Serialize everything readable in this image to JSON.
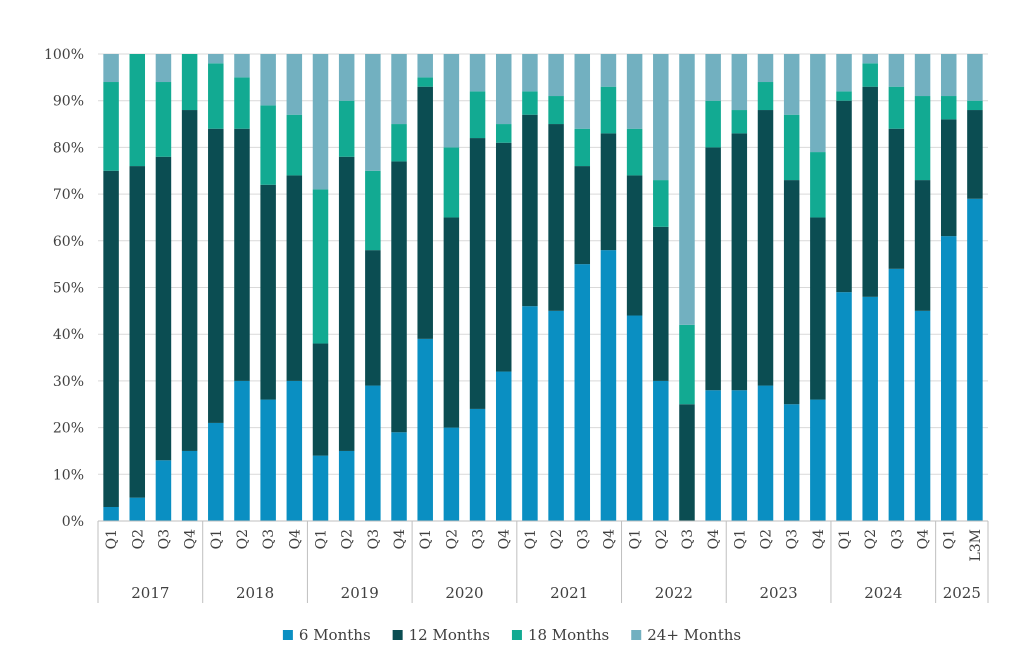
{
  "chart_data": {
    "type": "bar",
    "stacked": true,
    "percent": true,
    "title": "",
    "xlabel": "",
    "ylabel": "",
    "ylim": [
      0,
      100
    ],
    "y_ticks": [
      "0%",
      "10%",
      "20%",
      "30%",
      "40%",
      "50%",
      "60%",
      "70%",
      "80%",
      "90%",
      "100%"
    ],
    "grid": true,
    "legend_position": "bottom",
    "categories": [
      "Q1",
      "Q2",
      "Q3",
      "Q4",
      "Q1",
      "Q2",
      "Q3",
      "Q4",
      "Q1",
      "Q2",
      "Q3",
      "Q4",
      "Q1",
      "Q2",
      "Q3",
      "Q4",
      "Q1",
      "Q2",
      "Q3",
      "Q4",
      "Q1",
      "Q2",
      "Q3",
      "Q4",
      "Q1",
      "Q2",
      "Q3",
      "Q4",
      "Q1",
      "Q2",
      "Q3",
      "Q4",
      "Q1",
      "L3M"
    ],
    "groups": [
      {
        "label": "2017",
        "count": 4
      },
      {
        "label": "2018",
        "count": 4
      },
      {
        "label": "2019",
        "count": 4
      },
      {
        "label": "2020",
        "count": 4
      },
      {
        "label": "2021",
        "count": 4
      },
      {
        "label": "2022",
        "count": 4
      },
      {
        "label": "2023",
        "count": 4
      },
      {
        "label": "2024",
        "count": 4
      },
      {
        "label": "2025",
        "count": 2
      }
    ],
    "series": [
      {
        "name": "6 Months",
        "color": "#0a8fc2",
        "values": [
          3,
          5,
          13,
          15,
          21,
          30,
          26,
          30,
          14,
          15,
          29,
          19,
          39,
          20,
          24,
          32,
          46,
          45,
          55,
          58,
          44,
          30,
          0,
          28,
          28,
          29,
          25,
          26,
          49,
          48,
          54,
          45,
          61,
          69
        ]
      },
      {
        "name": "12 Months",
        "color": "#0b4d52",
        "values": [
          72,
          71,
          65,
          73,
          63,
          54,
          46,
          44,
          24,
          63,
          29,
          58,
          54,
          45,
          58,
          49,
          41,
          40,
          21,
          25,
          30,
          33,
          25,
          52,
          55,
          59,
          48,
          39,
          41,
          45,
          30,
          28,
          25,
          19
        ]
      },
      {
        "name": "18 Months",
        "color": "#12aa92",
        "values": [
          19,
          24,
          16,
          12,
          14,
          11,
          17,
          13,
          33,
          12,
          17,
          8,
          2,
          15,
          10,
          4,
          5,
          6,
          8,
          10,
          10,
          10,
          17,
          10,
          5,
          6,
          14,
          14,
          2,
          5,
          9,
          18,
          5,
          2
        ]
      },
      {
        "name": "24+ Months",
        "color": "#72b0c0",
        "values": [
          6,
          0,
          6,
          0,
          2,
          5,
          11,
          13,
          29,
          10,
          25,
          15,
          5,
          20,
          8,
          15,
          8,
          9,
          16,
          7,
          16,
          27,
          58,
          10,
          12,
          6,
          13,
          21,
          8,
          2,
          7,
          9,
          9,
          10
        ]
      }
    ]
  }
}
